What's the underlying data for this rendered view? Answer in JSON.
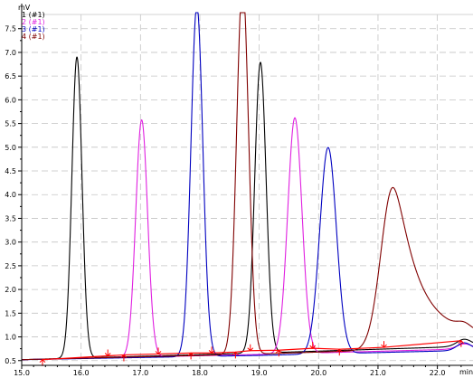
{
  "chart_data": {
    "type": "line",
    "title": "",
    "ylabel": "mV",
    "xlabel": "min",
    "xlim": [
      15.0,
      22.6
    ],
    "ylim": [
      0.4,
      7.8
    ],
    "grid": true,
    "legend_position": "top-left",
    "x_ticks": [
      15.0,
      16.0,
      17.0,
      18.0,
      19.0,
      20.0,
      21.0,
      22.0
    ],
    "x_tick_labels": [
      "15.0",
      "16.0",
      "17.0",
      "18.0",
      "19.0",
      "20.0",
      "21.0",
      "22.0"
    ],
    "y_ticks": [
      0.5,
      1.0,
      1.5,
      2.0,
      2.5,
      3.0,
      3.5,
      4.0,
      4.5,
      5.0,
      5.5,
      6.0,
      6.5,
      7.0,
      7.5
    ],
    "y_tick_labels": [
      "0.5",
      "1.0",
      "1.5",
      "2.0",
      "2.5",
      "3.0",
      "3.5",
      "4.0",
      "4.5",
      "5.0",
      "5.5",
      "6.0",
      "6.5",
      "7.0",
      "7.5"
    ],
    "series": [
      {
        "name": "1 (#1)",
        "color": "#000000",
        "baseline": [
          [
            15.0,
            0.52
          ],
          [
            19.0,
            0.66
          ],
          [
            22.0,
            0.78
          ],
          [
            22.6,
            0.82
          ]
        ],
        "peaks": [
          {
            "x": 15.93,
            "height": 6.35,
            "sigma": 0.085,
            "tail": 0.0
          },
          {
            "x": 19.02,
            "height": 6.13,
            "sigma": 0.095,
            "tail": 0.0
          }
        ],
        "end_bump": {
          "x": 22.45,
          "height": 0.14,
          "sigma": 0.12
        }
      },
      {
        "name": "2 (#1)",
        "color": "#e020e0",
        "baseline": [
          [
            15.0,
            0.52
          ],
          [
            19.0,
            0.63
          ],
          [
            22.0,
            0.73
          ],
          [
            22.6,
            0.76
          ]
        ],
        "peaks": [
          {
            "x": 17.02,
            "height": 5.0,
            "sigma": 0.1,
            "tail": 0.0
          },
          {
            "x": 19.6,
            "height": 4.97,
            "sigma": 0.12,
            "tail": 0.0
          }
        ],
        "end_bump": {
          "x": 22.45,
          "height": 0.1,
          "sigma": 0.12
        }
      },
      {
        "name": "3 (#1)",
        "color": "#0000c0",
        "baseline": [
          [
            15.0,
            0.52
          ],
          [
            19.0,
            0.61
          ],
          [
            22.0,
            0.7
          ],
          [
            22.6,
            0.72
          ]
        ],
        "peaks": [
          {
            "x": 17.95,
            "height": 7.4,
            "sigma": 0.1,
            "tail": 0.0
          },
          {
            "x": 20.16,
            "height": 4.35,
            "sigma": 0.14,
            "tail": 0.0
          }
        ],
        "end_bump": {
          "x": 22.45,
          "height": 0.16,
          "sigma": 0.12
        }
      },
      {
        "name": "4 (#1)",
        "color": "#800000",
        "baseline": [
          [
            15.0,
            0.52
          ],
          [
            19.0,
            0.64
          ],
          [
            22.0,
            0.76
          ],
          [
            22.6,
            0.79
          ]
        ],
        "peaks": [
          {
            "x": 18.72,
            "height": 7.85,
            "sigma": 0.1,
            "tail": 0.0
          },
          {
            "x": 21.25,
            "height": 3.42,
            "sigma": 0.2,
            "tail": 0.32
          }
        ],
        "end_bump": {
          "x": 22.45,
          "height": 0.12,
          "sigma": 0.12
        }
      }
    ],
    "integration_baseline": {
      "color": "#ff0000",
      "points": [
        [
          15.35,
          0.52
        ],
        [
          16.45,
          0.6
        ],
        [
          16.72,
          0.62
        ],
        [
          17.3,
          0.64
        ],
        [
          17.85,
          0.66
        ],
        [
          18.2,
          0.66
        ],
        [
          18.6,
          0.68
        ],
        [
          18.85,
          0.71
        ],
        [
          19.33,
          0.72
        ],
        [
          19.9,
          0.76
        ],
        [
          20.35,
          0.74
        ],
        [
          21.1,
          0.78
        ],
        [
          22.4,
          0.92
        ]
      ]
    }
  }
}
